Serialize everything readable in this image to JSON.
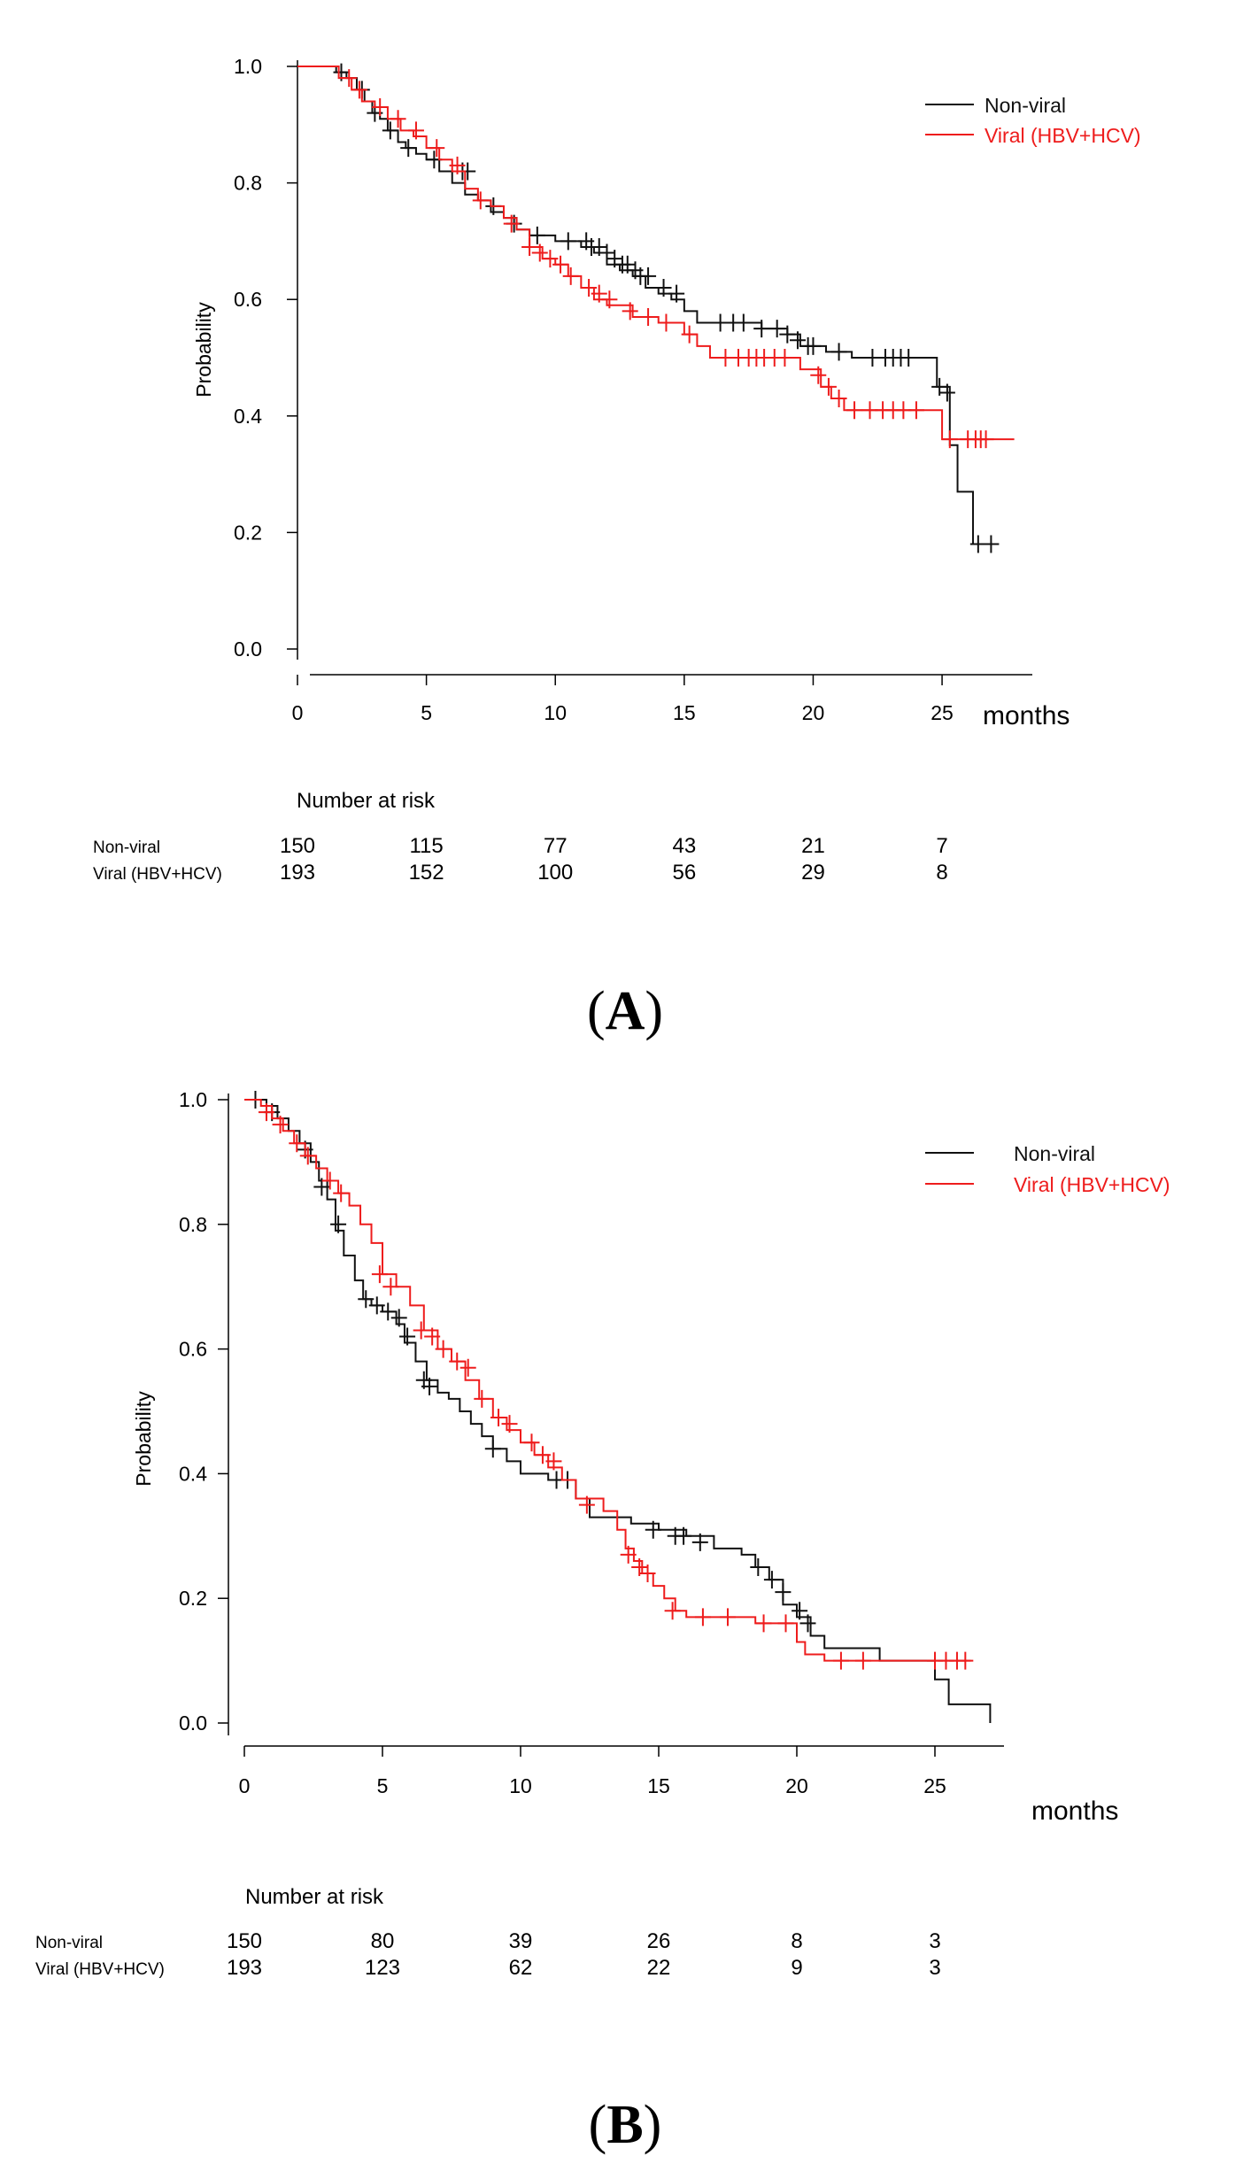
{
  "colors": {
    "nonviral": "#111111",
    "viral": "#ee1c1c"
  },
  "chart_data": [
    {
      "type": "line",
      "panel_label_open": "(",
      "panel_label_letter": "A",
      "panel_label_close": ")",
      "ylabel": "Probability",
      "xlabel": "months",
      "xlim": [
        0,
        28.5
      ],
      "ylim": [
        0,
        1.0
      ],
      "xticks": [
        "0",
        "5",
        "10",
        "15",
        "20",
        "25"
      ],
      "yticks": [
        "0.0",
        "0.2",
        "0.4",
        "0.6",
        "0.8",
        "1.0"
      ],
      "legend": [
        "Non-viral",
        "Viral (HBV+HCV)"
      ],
      "legend_position": "top-right",
      "series": [
        {
          "name": "Non-viral",
          "x": [
            0,
            1.5,
            1.9,
            2.3,
            2.6,
            2.9,
            3.2,
            3.5,
            3.9,
            4.2,
            4.6,
            5.0,
            5.5,
            6.0,
            6.5,
            7.0,
            7.5,
            8.0,
            8.5,
            9.0,
            9.5,
            10.0,
            10.5,
            11.0,
            11.5,
            12.0,
            12.5,
            13.0,
            13.5,
            14.0,
            14.5,
            15.0,
            15.5,
            16.0,
            17.0,
            18.0,
            19.0,
            19.5,
            20.5,
            21.5,
            24.8,
            25.3,
            25.6,
            26.2,
            27.0
          ],
          "y": [
            1.0,
            0.99,
            0.98,
            0.96,
            0.94,
            0.92,
            0.91,
            0.89,
            0.87,
            0.86,
            0.85,
            0.84,
            0.82,
            0.8,
            0.78,
            0.77,
            0.75,
            0.74,
            0.72,
            0.71,
            0.71,
            0.7,
            0.7,
            0.69,
            0.68,
            0.66,
            0.65,
            0.64,
            0.62,
            0.61,
            0.6,
            0.58,
            0.56,
            0.56,
            0.56,
            0.55,
            0.54,
            0.52,
            0.51,
            0.5,
            0.45,
            0.35,
            0.27,
            0.18,
            0.18
          ],
          "censor_x": [
            1.7,
            2.5,
            3.0,
            3.6,
            4.3,
            5.3,
            6.4,
            6.6,
            7.6,
            8.4,
            9.3,
            10.5,
            11.2,
            11.4,
            11.7,
            12.0,
            12.3,
            12.6,
            12.8,
            13.1,
            13.3,
            13.6,
            14.2,
            14.7,
            16.4,
            16.9,
            17.3,
            18.0,
            18.6,
            19.0,
            19.4,
            19.8,
            20.0,
            21.0,
            22.3,
            22.8,
            23.1,
            23.4,
            23.7,
            24.9,
            25.2,
            26.4,
            26.9
          ],
          "censor_y": [
            0.99,
            0.96,
            0.92,
            0.89,
            0.86,
            0.84,
            0.82,
            0.82,
            0.76,
            0.73,
            0.71,
            0.7,
            0.7,
            0.69,
            0.69,
            0.68,
            0.67,
            0.66,
            0.66,
            0.65,
            0.64,
            0.64,
            0.62,
            0.61,
            0.56,
            0.56,
            0.56,
            0.55,
            0.55,
            0.54,
            0.53,
            0.52,
            0.52,
            0.51,
            0.5,
            0.5,
            0.5,
            0.5,
            0.5,
            0.45,
            0.44,
            0.18,
            0.18
          ]
        },
        {
          "name": "Viral (HBV+HCV)",
          "x": [
            0,
            1.6,
            2.1,
            2.5,
            3.0,
            3.5,
            4.0,
            4.5,
            5.0,
            5.5,
            6.0,
            6.5,
            7.0,
            7.5,
            8.0,
            8.5,
            9.0,
            9.5,
            10.0,
            10.5,
            11.0,
            11.5,
            12.0,
            13.0,
            14.0,
            15.0,
            15.5,
            16.0,
            19.5,
            20.3,
            20.7,
            21.2,
            25.0,
            27.8
          ],
          "y": [
            1.0,
            0.98,
            0.96,
            0.94,
            0.93,
            0.91,
            0.89,
            0.88,
            0.86,
            0.84,
            0.82,
            0.79,
            0.77,
            0.76,
            0.74,
            0.72,
            0.69,
            0.67,
            0.66,
            0.64,
            0.62,
            0.6,
            0.59,
            0.57,
            0.56,
            0.54,
            0.52,
            0.5,
            0.48,
            0.45,
            0.43,
            0.41,
            0.36,
            0.36
          ],
          "censor_x": [
            2.0,
            2.4,
            3.2,
            3.9,
            4.6,
            5.4,
            6.2,
            7.1,
            8.3,
            9.0,
            9.4,
            9.8,
            10.2,
            10.6,
            11.3,
            11.7,
            12.1,
            12.9,
            13.6,
            14.3,
            15.2,
            16.6,
            17.1,
            17.5,
            17.8,
            18.1,
            18.5,
            18.9,
            20.2,
            20.6,
            21.0,
            21.6,
            22.2,
            22.7,
            23.1,
            23.5,
            24.0,
            25.3,
            26.0,
            26.3,
            26.5,
            26.7
          ],
          "censor_y": [
            0.98,
            0.96,
            0.93,
            0.91,
            0.89,
            0.86,
            0.83,
            0.77,
            0.73,
            0.69,
            0.68,
            0.67,
            0.66,
            0.64,
            0.62,
            0.61,
            0.6,
            0.58,
            0.57,
            0.56,
            0.54,
            0.5,
            0.5,
            0.5,
            0.5,
            0.5,
            0.5,
            0.5,
            0.47,
            0.45,
            0.43,
            0.41,
            0.41,
            0.41,
            0.41,
            0.41,
            0.41,
            0.36,
            0.36,
            0.36,
            0.36,
            0.36
          ]
        }
      ],
      "risk_table": {
        "title": "Number at risk",
        "time_points": [
          0,
          5,
          10,
          15,
          20,
          25
        ],
        "rows": [
          {
            "name": "Non-viral",
            "values": [
              "150",
              "115",
              "77",
              "43",
              "21",
              "7"
            ]
          },
          {
            "name": "Viral (HBV+HCV)",
            "values": [
              "193",
              "152",
              "100",
              "56",
              "29",
              "8"
            ]
          }
        ]
      }
    },
    {
      "type": "line",
      "panel_label_open": "(",
      "panel_label_letter": "B",
      "panel_label_close": ")",
      "ylabel": "Probability",
      "xlabel": "months",
      "xlim": [
        0,
        27.5
      ],
      "ylim": [
        0,
        1.0
      ],
      "xticks": [
        "0",
        "5",
        "10",
        "15",
        "20",
        "25"
      ],
      "yticks": [
        "0.0",
        "0.2",
        "0.4",
        "0.6",
        "0.8",
        "1.0"
      ],
      "legend": [
        "Non-viral",
        "Viral (HBV+HCV)"
      ],
      "legend_position": "top-right",
      "series": [
        {
          "name": "Non-viral",
          "x": [
            0,
            0.8,
            1.2,
            1.6,
            2.0,
            2.4,
            2.7,
            3.0,
            3.3,
            3.6,
            4.0,
            4.3,
            4.6,
            5.0,
            5.5,
            5.8,
            6.2,
            6.6,
            7.0,
            7.4,
            7.8,
            8.2,
            8.6,
            9.0,
            9.5,
            10.0,
            11.0,
            12.0,
            12.5,
            14.0,
            15.0,
            16.0,
            17.0,
            18.0,
            18.5,
            19.0,
            19.5,
            20.0,
            20.5,
            21.0,
            23.0,
            25.0,
            25.5,
            27.0
          ],
          "y": [
            1.0,
            0.99,
            0.97,
            0.95,
            0.93,
            0.9,
            0.87,
            0.84,
            0.79,
            0.75,
            0.71,
            0.68,
            0.67,
            0.66,
            0.64,
            0.61,
            0.58,
            0.55,
            0.53,
            0.52,
            0.5,
            0.48,
            0.46,
            0.44,
            0.42,
            0.4,
            0.39,
            0.36,
            0.33,
            0.32,
            0.31,
            0.3,
            0.28,
            0.27,
            0.25,
            0.23,
            0.19,
            0.17,
            0.14,
            0.12,
            0.1,
            0.07,
            0.03,
            0.0
          ],
          "censor_x": [
            0.4,
            1.0,
            2.2,
            2.8,
            3.4,
            4.4,
            4.8,
            5.2,
            5.6,
            5.9,
            6.5,
            6.7,
            9.0,
            11.3,
            11.7,
            14.8,
            15.6,
            15.9,
            16.5,
            18.6,
            19.1,
            19.5,
            20.1,
            20.4
          ],
          "censor_y": [
            1.0,
            0.98,
            0.92,
            0.86,
            0.8,
            0.68,
            0.67,
            0.66,
            0.65,
            0.62,
            0.55,
            0.54,
            0.44,
            0.39,
            0.39,
            0.31,
            0.3,
            0.3,
            0.29,
            0.25,
            0.23,
            0.21,
            0.18,
            0.16
          ]
        },
        {
          "name": "Viral (HBV+HCV)",
          "x": [
            0,
            0.6,
            1.0,
            1.4,
            1.8,
            2.2,
            2.6,
            3.0,
            3.4,
            3.8,
            4.2,
            4.6,
            5.0,
            5.5,
            6.0,
            6.5,
            7.0,
            7.5,
            8.0,
            8.5,
            9.0,
            9.5,
            10.0,
            10.5,
            11.0,
            11.5,
            12.0,
            13.0,
            13.5,
            13.8,
            14.1,
            14.4,
            14.8,
            15.2,
            15.6,
            16.0,
            18.5,
            20.0,
            20.3,
            21.0,
            22.0,
            24.5,
            26.3
          ],
          "y": [
            1.0,
            0.99,
            0.97,
            0.95,
            0.93,
            0.91,
            0.89,
            0.87,
            0.85,
            0.83,
            0.8,
            0.77,
            0.72,
            0.7,
            0.67,
            0.63,
            0.6,
            0.58,
            0.55,
            0.52,
            0.49,
            0.47,
            0.45,
            0.43,
            0.41,
            0.39,
            0.36,
            0.34,
            0.31,
            0.28,
            0.26,
            0.24,
            0.22,
            0.2,
            0.18,
            0.17,
            0.16,
            0.13,
            0.11,
            0.1,
            0.1,
            0.1,
            0.1
          ],
          "censor_x": [
            0.8,
            1.3,
            1.9,
            2.3,
            3.1,
            3.5,
            4.9,
            5.3,
            6.4,
            6.8,
            7.2,
            7.7,
            8.1,
            8.6,
            9.2,
            9.6,
            10.4,
            10.8,
            11.2,
            12.4,
            13.9,
            14.3,
            14.6,
            15.5,
            16.6,
            17.5,
            18.8,
            19.6,
            21.6,
            22.4,
            25.0,
            25.4,
            25.8,
            26.1
          ],
          "censor_y": [
            0.98,
            0.96,
            0.93,
            0.91,
            0.87,
            0.85,
            0.72,
            0.7,
            0.63,
            0.62,
            0.6,
            0.58,
            0.57,
            0.52,
            0.49,
            0.48,
            0.45,
            0.43,
            0.42,
            0.35,
            0.27,
            0.25,
            0.24,
            0.18,
            0.17,
            0.17,
            0.16,
            0.16,
            0.1,
            0.1,
            0.1,
            0.1,
            0.1,
            0.1
          ]
        }
      ],
      "risk_table": {
        "title": "Number at risk",
        "time_points": [
          0,
          5,
          10,
          15,
          20,
          25
        ],
        "rows": [
          {
            "name": "Non-viral",
            "values": [
              "150",
              "80",
              "39",
              "26",
              "8",
              "3"
            ]
          },
          {
            "name": "Viral (HBV+HCV)",
            "values": [
              "193",
              "123",
              "62",
              "22",
              "9",
              "3"
            ]
          }
        ]
      }
    }
  ]
}
